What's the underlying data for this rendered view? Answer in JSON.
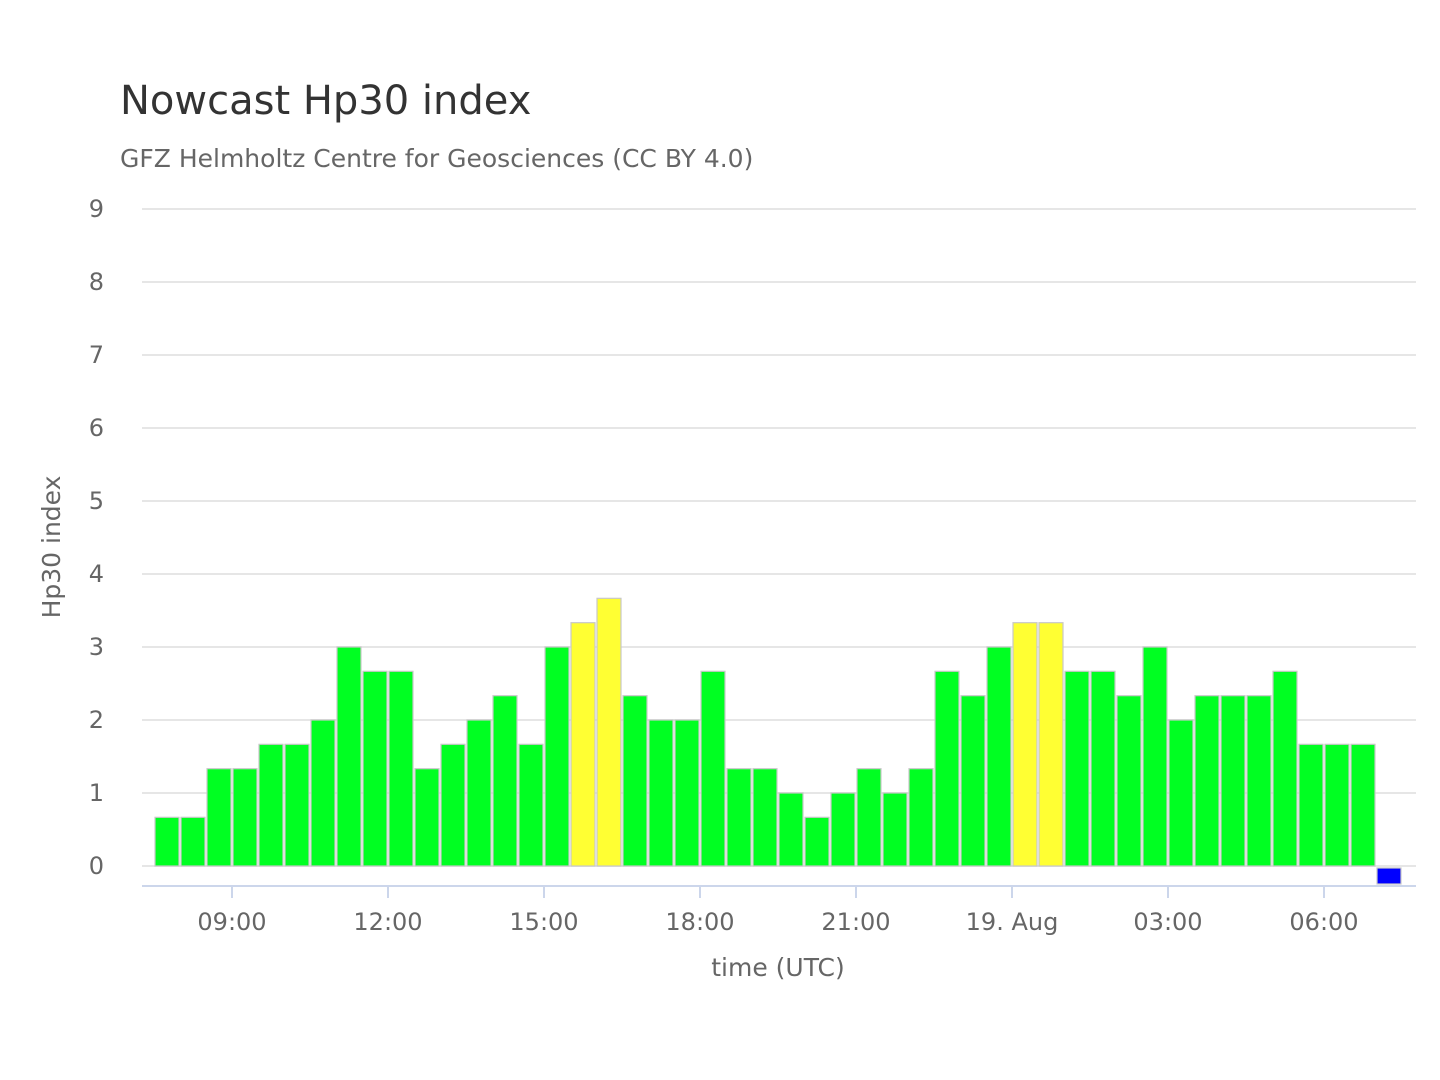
{
  "chart_data": {
    "type": "bar",
    "title": "Nowcast Hp30 index",
    "subtitle": "GFZ Helmholtz Centre for Geosciences (CC BY 4.0)",
    "xlabel": "time (UTC)",
    "ylabel": "Hp30 index",
    "ylim": [
      0,
      9
    ],
    "yticks": [
      "0",
      "1",
      "2",
      "3",
      "4",
      "5",
      "6",
      "7",
      "8",
      "9"
    ],
    "x_start": "18. Aug 07:30",
    "bar_interval_minutes": 30,
    "x_tick_labels": [
      "09:00",
      "12:00",
      "15:00",
      "18:00",
      "21:00",
      "19. Aug",
      "03:00",
      "06:00"
    ],
    "grid": true,
    "legend": "none",
    "colors": {
      "quiet": "#00ff22",
      "active": "#ffff33",
      "nowcast": "#0000ff",
      "grid": "#e6e6e6",
      "axis": "#ccd6eb"
    },
    "values": [
      0.667,
      0.667,
      1.333,
      1.333,
      1.667,
      1.667,
      2.0,
      3.0,
      2.667,
      2.667,
      1.333,
      1.667,
      2.0,
      2.333,
      1.667,
      3.0,
      3.333,
      3.667,
      2.333,
      2.0,
      2.0,
      2.667,
      1.333,
      1.333,
      1.0,
      0.667,
      1.0,
      1.333,
      1.0,
      1.333,
      2.667,
      2.333,
      3.0,
      3.333,
      3.333,
      2.667,
      2.667,
      2.333,
      3.0,
      2.0,
      2.333,
      2.333,
      2.333,
      2.667,
      1.667,
      1.667,
      1.667,
      0.0
    ]
  }
}
